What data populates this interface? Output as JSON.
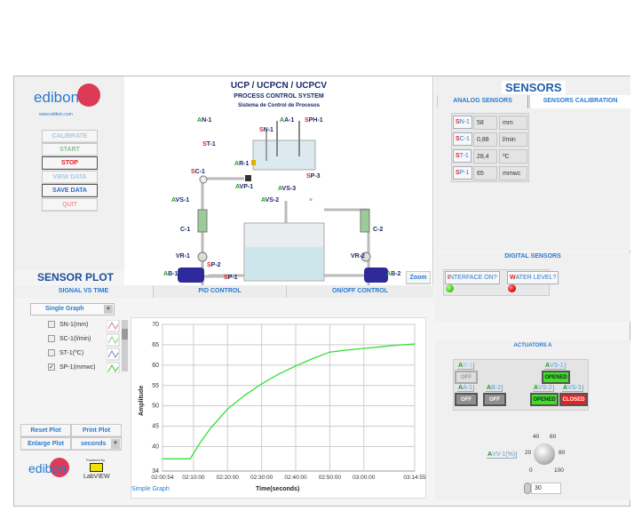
{
  "left_panel": {
    "logo_text": "edibon",
    "logo_url_text": "www.edibon.com",
    "buttons": [
      {
        "label": "CALIBRATE",
        "color": "#a8c8e8"
      },
      {
        "label": "START",
        "color": "#90c090"
      },
      {
        "label": "STOP",
        "color": "#e02020"
      },
      {
        "label": "VIEW DATA",
        "color": "#a8c8e8"
      },
      {
        "label": "SAVE DATA",
        "color": "#2a6ad0"
      },
      {
        "label": "QUIT",
        "color": "#e8a0a0"
      }
    ],
    "sensor_plot_title": "SENSOR PLOT"
  },
  "diagram": {
    "title": "UCP / UCPCN / UCPCV",
    "subtitle": "PROCESS CONTROL SYSTEM",
    "subtitle_es": "Sistema de Control de Procesos",
    "labels": {
      "an1": "AN-1",
      "sn1": "SN-1",
      "aa1": "AA-1",
      "sph1": "SPH-1",
      "st1": "ST-1",
      "ar1": "AR-1",
      "sc1": "SC-1",
      "avp1": "AVP-1",
      "sp3": "SP-3",
      "avs3": "AVS-3",
      "avs1": "AVS-1",
      "avs2": "AVS-2",
      "c1": "C-1",
      "c2": "C-2",
      "vr1": "VR-1",
      "vr2": "VR-2",
      "sp2": "SP-2",
      "ab1": "AB-1",
      "ab2": "AB-2",
      "sp1": "SP-1"
    },
    "zoom_label": "Zoom"
  },
  "tabs": {
    "signal_vs_time": "SIGNAL VS TIME",
    "pid_control": "PID CONTROL",
    "onoff_control": "ON/OFF CONTROL"
  },
  "plot_controls": {
    "graph_mode": "Single Graph",
    "signals": [
      {
        "label": "SN-1(mm)",
        "checked": false,
        "color": "#e08080"
      },
      {
        "label": "SC-1(l/min)",
        "checked": false,
        "color": "#80d080"
      },
      {
        "label": "ST-1(ºC)",
        "checked": false,
        "color": "#8080d0"
      },
      {
        "label": "SP-1(mmwc)",
        "checked": true,
        "color": "#30c030"
      }
    ],
    "reset_plot": "Reset Plot",
    "print_plot": "Print Plot",
    "enlarge_plot": "Enlarge Plot",
    "time_unit": "seconds",
    "powered_by": "Powered by",
    "labview": "LabVIEW",
    "graph_name": "Simple Graph"
  },
  "chart_data": {
    "type": "line",
    "xlabel": "Time(seconds)",
    "ylabel": "Amplitude",
    "x_ticks": [
      "02:00:54",
      "02:10:00",
      "02:20:00",
      "02:30:00",
      "02:40:00",
      "02:50:00",
      "03:00:00",
      "03:14:55"
    ],
    "y_ticks": [
      34,
      40,
      45,
      50,
      55,
      60,
      65,
      70
    ],
    "xlim": [
      "02:00:54",
      "03:14:55"
    ],
    "ylim": [
      34,
      70
    ],
    "grid": true,
    "series": [
      {
        "color": "#33e033",
        "x": [
          "02:00:54",
          "02:05:00",
          "02:09:00",
          "02:12:00",
          "02:15:00",
          "02:20:00",
          "02:25:00",
          "02:30:00",
          "02:35:00",
          "02:40:00",
          "02:45:00",
          "02:50:00",
          "02:55:00",
          "03:00:00",
          "03:05:00",
          "03:10:00",
          "03:14:55"
        ],
        "y": [
          37.0,
          37.0,
          37.0,
          41.0,
          44.5,
          49.2,
          52.6,
          55.4,
          57.8,
          59.8,
          61.6,
          63.2,
          63.7,
          64.1,
          64.5,
          64.9,
          65.2
        ]
      }
    ]
  },
  "sensors": {
    "title": "SENSORS",
    "tab_analog": "ANALOG SENSORS",
    "tab_calibration": "SENSORS CALIBRATION",
    "analog": [
      {
        "label": "SN-1",
        "value": "58",
        "unit": "mm"
      },
      {
        "label": "SC-1",
        "value": "0,88",
        "unit": "l/min"
      },
      {
        "label": "ST-1",
        "value": "28,4",
        "unit": "ºC"
      },
      {
        "label": "SP-1",
        "value": "65",
        "unit": "mmwc"
      }
    ],
    "digital_title": "DIGITAL SENSORS",
    "digital": [
      {
        "label": "INTERFACE ON?",
        "state": "on",
        "color": "#40d020"
      },
      {
        "label": "WATER LEVEL?",
        "state": "on",
        "color": "#e01010"
      }
    ]
  },
  "actuators": {
    "title": "ACTUATORS A",
    "items": {
      "ar1": {
        "label": "AR-1",
        "state": "OFF"
      },
      "aa1": {
        "label": "AA-1",
        "state": "OFF"
      },
      "ab2": {
        "label": "AB-2",
        "state": "OFF"
      },
      "avs1": {
        "label": "AVS-1",
        "state": "OPENED"
      },
      "avs2": {
        "label": "AVS-2",
        "state": "OPENED"
      },
      "avs3": {
        "label": "AVS-3",
        "state": "CLOSED"
      }
    },
    "valve": {
      "label": "AVV-1(%)",
      "value": 30,
      "dial_ticks": [
        "0",
        "20",
        "40",
        "60",
        "80",
        "100"
      ]
    },
    "colors": {
      "opened": "#40e020",
      "closed": "#e82020",
      "off": "#909090"
    }
  }
}
